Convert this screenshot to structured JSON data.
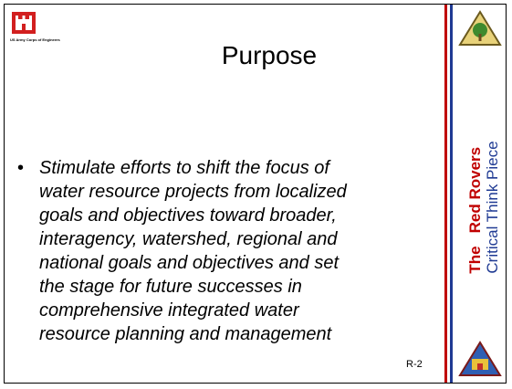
{
  "logo": {
    "caption": "US Army Corps of Engineers"
  },
  "title": "Purpose",
  "bullet": {
    "lines": [
      "Stimulate efforts to shift the focus of",
      "water resource projects from localized",
      "goals and objectives toward broader,",
      "interagency, watershed, regional and",
      "national goals and objectives and set",
      "the stage for future successes in",
      "comprehensive integrated water",
      "resource planning and management"
    ]
  },
  "page_number": "R-2",
  "sidebar": {
    "the": "The",
    "team": "Red Rovers",
    "subtitle": "Critical Think Piece"
  }
}
